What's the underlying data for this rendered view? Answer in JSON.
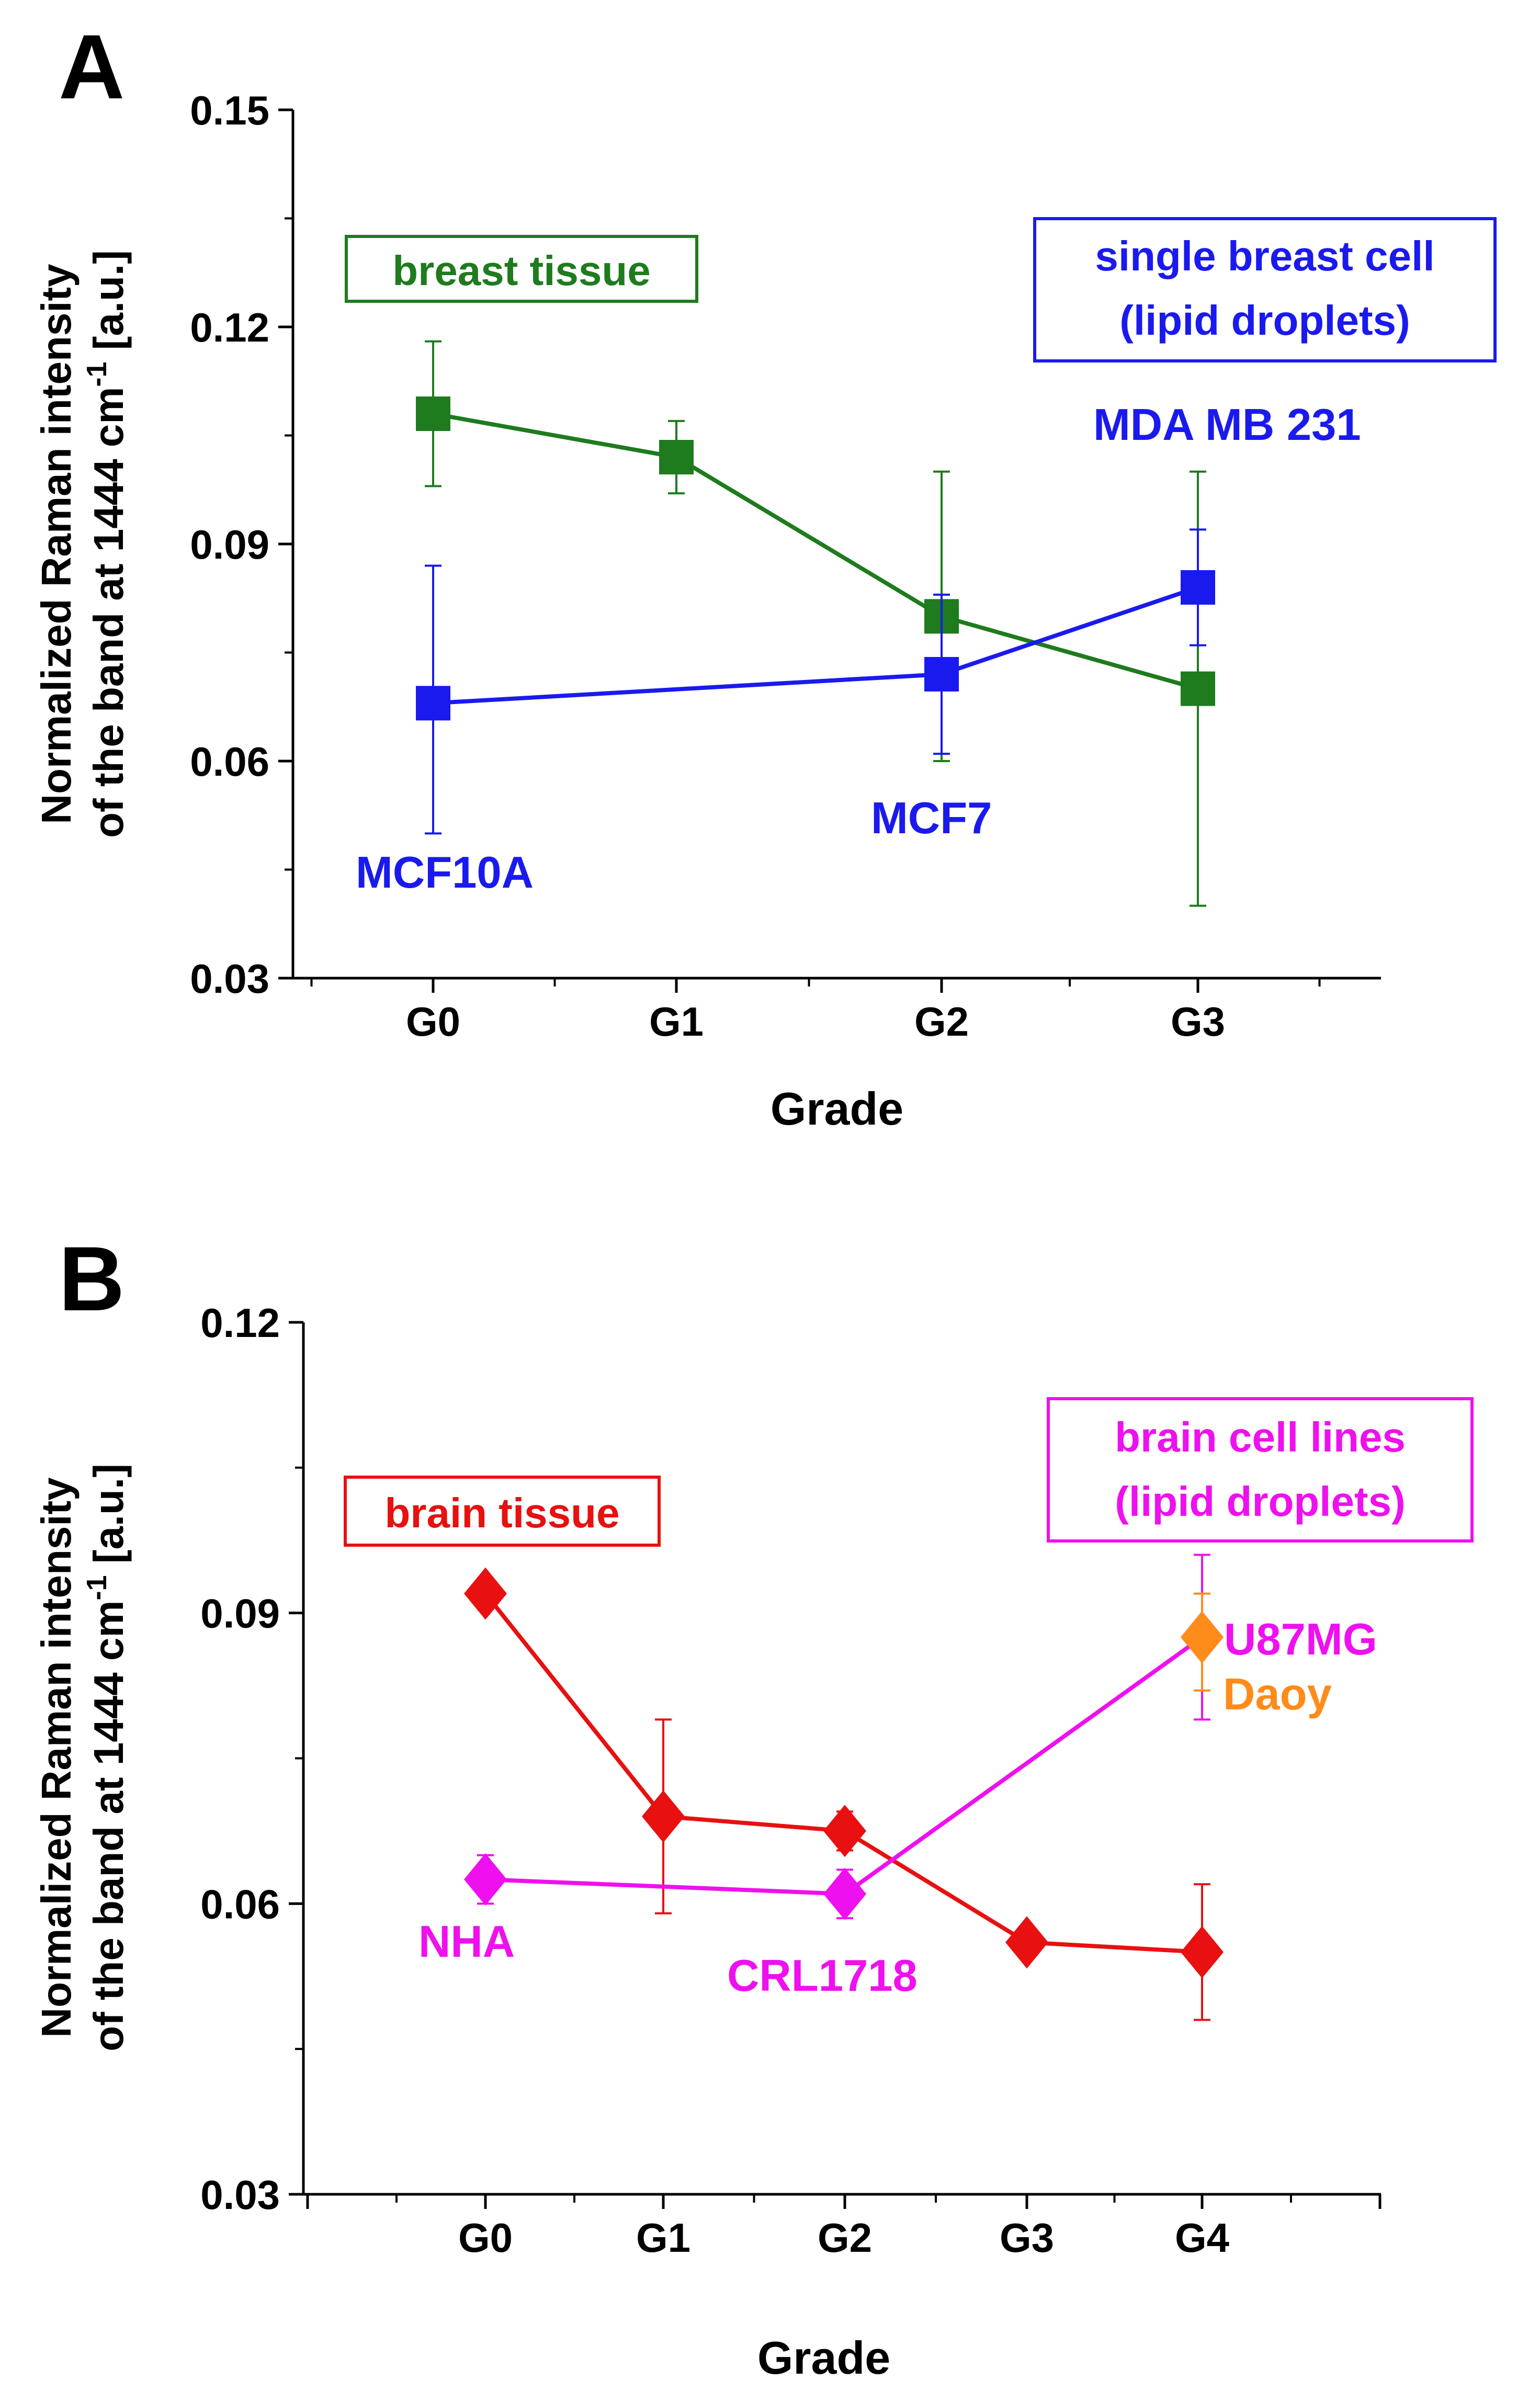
{
  "chart_data": [
    {
      "type": "line",
      "panel_letter": "A",
      "title": "",
      "xlabel": "Grade",
      "ylabel_line1": "Normalized Raman intensity",
      "ylabel_line2_pre": "of the band at 1444 cm",
      "ylabel_sup": "-1",
      "ylabel_line2_post": " [a.u.]",
      "categories": [
        "G0",
        "G1",
        "G2",
        "G3"
      ],
      "ylim": [
        0.03,
        0.15
      ],
      "yticks": [
        "0.03",
        "0.06",
        "0.09",
        "0.12",
        "0.15"
      ],
      "yticks_values": [
        0.03,
        0.06,
        0.09,
        0.12,
        0.15
      ],
      "series": [
        {
          "name": "breast tissue",
          "color": "#1e7b1e",
          "marker": "square",
          "x": [
            0,
            1,
            2,
            3
          ],
          "values": [
            0.108,
            0.102,
            0.08,
            0.07
          ],
          "err_low": [
            0.098,
            0.097,
            0.06,
            0.04
          ],
          "err_high": [
            0.118,
            0.107,
            0.1,
            0.1
          ]
        },
        {
          "name": "single breast cell (lipid droplets)",
          "color": "#1a1aee",
          "marker": "square",
          "x": [
            0,
            2,
            3
          ],
          "values": [
            0.068,
            0.072,
            0.084
          ],
          "err_low": [
            0.05,
            0.061,
            0.076
          ],
          "err_high": [
            0.087,
            0.083,
            0.092
          ]
        }
      ],
      "legend_boxes": [
        {
          "lines": [
            "breast tissue"
          ],
          "color": "#1e7b1e"
        },
        {
          "lines": [
            "single breast cell",
            "(lipid droplets)"
          ],
          "color": "#1a1aee"
        }
      ],
      "annotations": [
        {
          "text": "MCF10A",
          "color": "#1a1aee"
        },
        {
          "text": "MCF7",
          "color": "#1a1aee"
        },
        {
          "text": "MDA MB 231",
          "color": "#1a1aee"
        }
      ]
    },
    {
      "type": "line",
      "panel_letter": "B",
      "title": "",
      "xlabel": "Grade",
      "ylabel_line1": "Normalized Raman intensity",
      "ylabel_line2_pre": "of the band at 1444 cm",
      "ylabel_sup": "-1",
      "ylabel_line2_post": " [a.u.]",
      "categories": [
        "G0",
        "G1",
        "G2",
        "G3",
        "G4"
      ],
      "ylim": [
        0.03,
        0.12
      ],
      "yticks": [
        "0.03",
        "0.06",
        "0.09",
        "0.12"
      ],
      "yticks_values": [
        0.03,
        0.06,
        0.09,
        0.12
      ],
      "series": [
        {
          "name": "brain tissue",
          "color": "#e81010",
          "marker": "diamond",
          "x": [
            0,
            1,
            2,
            3,
            4
          ],
          "values": [
            0.092,
            0.069,
            0.0675,
            0.056,
            0.055
          ],
          "err_low": [
            null,
            0.059,
            0.0655,
            null,
            0.048
          ],
          "err_high": [
            null,
            0.079,
            0.0695,
            null,
            0.062
          ]
        },
        {
          "name": "brain cell lines (lipid droplets)",
          "color": "#ee10ee",
          "marker": "diamond",
          "x": [
            0,
            2,
            4
          ],
          "values": [
            0.0625,
            0.061,
            0.0875
          ],
          "err_low": [
            0.06,
            0.0585,
            0.079
          ],
          "err_high": [
            0.065,
            0.0635,
            0.096
          ]
        },
        {
          "name": "Daoy",
          "color": "#ff8c1a",
          "marker": "diamond",
          "x": [
            4
          ],
          "values": [
            0.0875
          ],
          "err_low": [
            0.082
          ],
          "err_high": [
            0.092
          ]
        }
      ],
      "legend_boxes": [
        {
          "lines": [
            "brain tissue"
          ],
          "color": "#e81010"
        },
        {
          "lines": [
            "brain cell lines",
            "(lipid droplets)"
          ],
          "color": "#ee10ee"
        }
      ],
      "annotations": [
        {
          "text": "NHA",
          "color": "#ee10ee"
        },
        {
          "text": "CRL1718",
          "color": "#ee10ee"
        },
        {
          "text": "U87MG",
          "color": "#ee10ee"
        },
        {
          "text": "Daoy",
          "color": "#ff8c1a"
        }
      ]
    }
  ]
}
